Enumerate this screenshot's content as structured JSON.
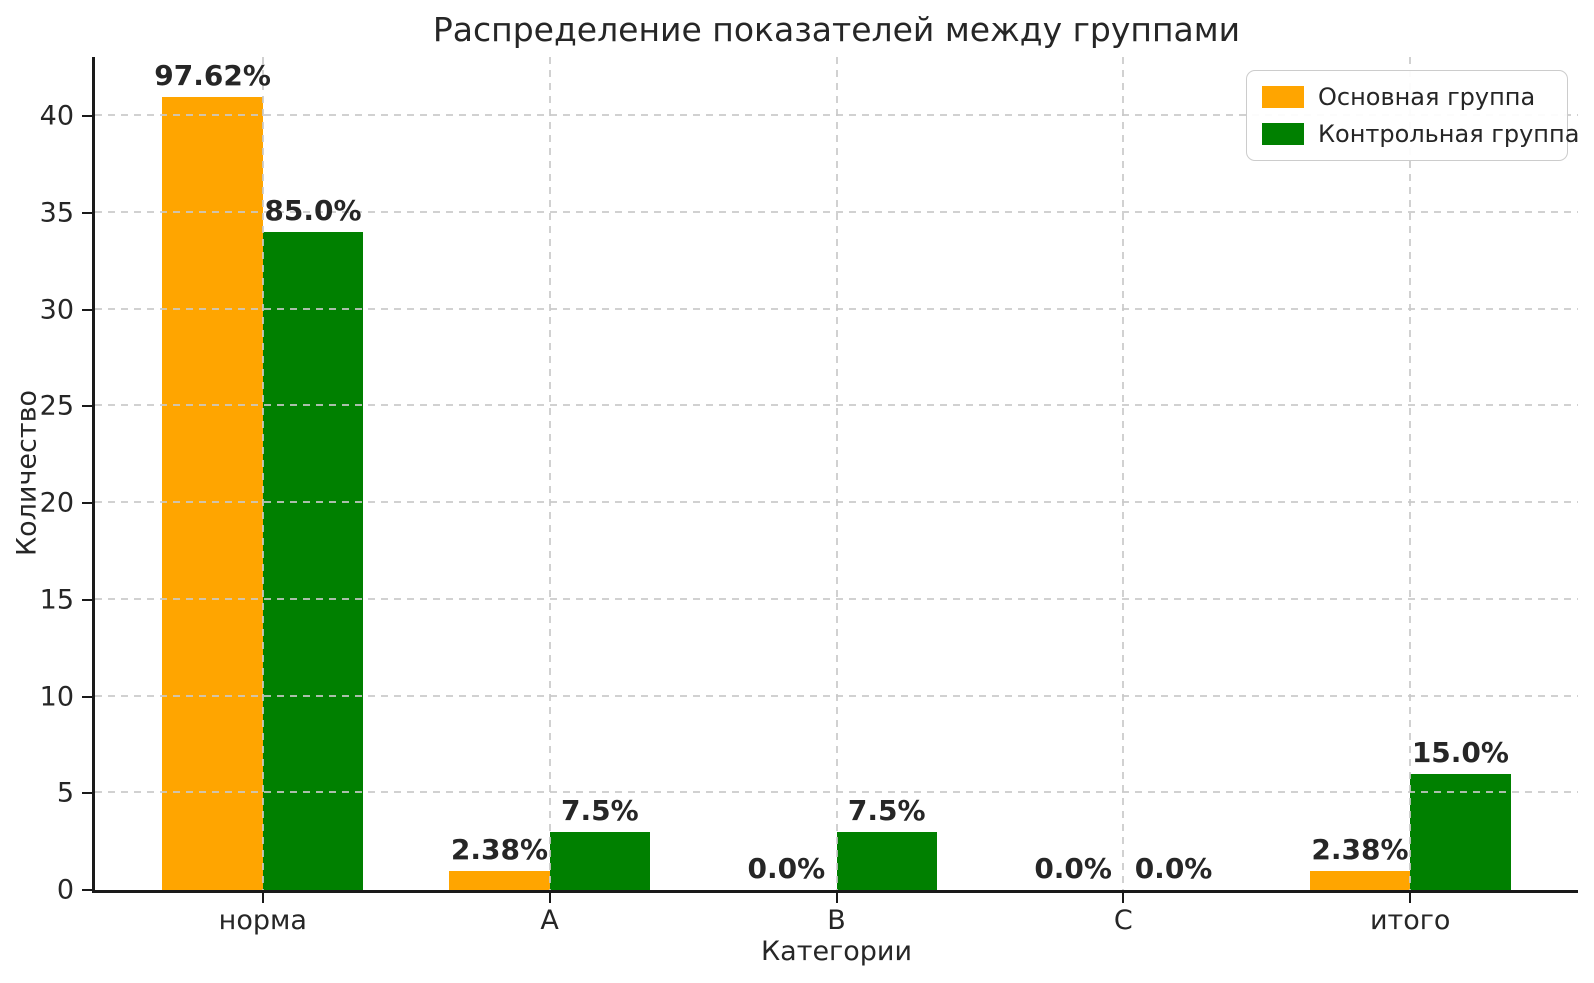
{
  "chart_data": {
    "type": "bar",
    "title": "Распределение показателей между группами",
    "xlabel": "Категории",
    "ylabel": "Количество",
    "categories": [
      "норма",
      "A",
      "B",
      "C",
      "итого"
    ],
    "series": [
      {
        "name": "Основная группа",
        "color": "#FFA500",
        "values": [
          41,
          1,
          0,
          0,
          1
        ],
        "bar_labels": [
          "97.62%",
          "2.38%",
          "0.0%",
          "0.0%",
          "2.38%"
        ]
      },
      {
        "name": "Контрольная группа",
        "color": "#008000",
        "values": [
          34,
          3,
          3,
          0,
          6
        ],
        "bar_labels": [
          "85.0%",
          "7.5%",
          "7.5%",
          "0.0%",
          "15.0%"
        ]
      }
    ],
    "yticks": [
      0,
      5,
      10,
      15,
      20,
      25,
      30,
      35,
      40
    ],
    "ylim": [
      0,
      43.05
    ],
    "grid": "dashed, both axes, drawn above bars",
    "legend_position": "upper right",
    "axis_color": "#1a1a1a",
    "grid_color": "#c9c9c9",
    "text_color": "#262626"
  }
}
